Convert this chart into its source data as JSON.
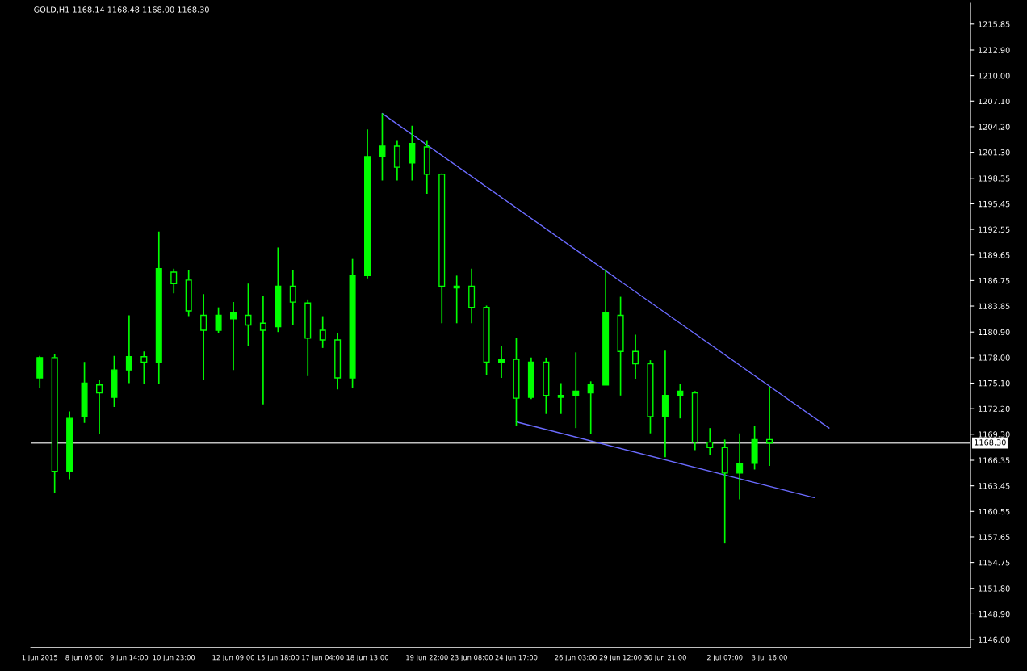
{
  "chart_data": {
    "type": "candlestick",
    "title": "GOLD,H1 1168.14 1168.48 1168.00 1168.30",
    "categories": [
      "1 Jun 2015",
      null,
      null,
      "8 Jun 05:00",
      null,
      null,
      "9 Jun 14:00",
      null,
      null,
      "10 Jun 23:00",
      null,
      null,
      null,
      "12 Jun 09:00",
      null,
      null,
      "15 Jun 18:00",
      null,
      null,
      "17 Jun 04:00",
      null,
      null,
      "18 Jun 13:00",
      null,
      null,
      null,
      "19 Jun 22:00",
      null,
      null,
      "23 Jun 08:00",
      null,
      null,
      "24 Jun 17:00",
      null,
      null,
      null,
      "26 Jun 03:00",
      null,
      null,
      "29 Jun 12:00",
      null,
      null,
      "30 Jun 21:00",
      null,
      null,
      null,
      "2 Jul 07:00",
      null,
      null,
      "3 Jul 16:00",
      null,
      null,
      null,
      null,
      null,
      null,
      null,
      null,
      null,
      null,
      null,
      null,
      null
    ],
    "series": [
      {
        "color": "#00ff00",
        "ohlc": [
          [
            1175.7,
            1178.2,
            1174.6,
            1178.0
          ],
          [
            1178.0,
            1178.4,
            1162.6,
            1165.1
          ],
          [
            1165.1,
            1171.9,
            1164.2,
            1171.1
          ],
          [
            1171.3,
            1177.5,
            1170.6,
            1175.1
          ],
          [
            1174.9,
            1175.5,
            1169.3,
            1174.0
          ],
          [
            1173.5,
            1178.2,
            1172.4,
            1176.6
          ],
          [
            1176.6,
            1182.8,
            1175.1,
            1178.1
          ],
          [
            1178.1,
            1178.7,
            1175.0,
            1177.5
          ],
          [
            1177.5,
            1192.3,
            1175.0,
            1188.1
          ],
          [
            1187.7,
            1188.1,
            1185.3,
            1186.4
          ],
          [
            1186.8,
            1187.9,
            1182.7,
            1183.3
          ],
          [
            1182.8,
            1185.2,
            1175.5,
            1181.1
          ],
          [
            1181.1,
            1183.7,
            1180.8,
            1182.8
          ],
          [
            1182.4,
            1184.3,
            1176.6,
            1183.1
          ],
          [
            1182.8,
            1186.4,
            1179.3,
            1181.7
          ],
          [
            1181.9,
            1185.0,
            1172.7,
            1181.1
          ],
          [
            1181.5,
            1190.5,
            1180.9,
            1186.1
          ],
          [
            1186.1,
            1187.9,
            1181.7,
            1184.3
          ],
          [
            1184.2,
            1184.6,
            1175.9,
            1180.2
          ],
          [
            1181.1,
            1182.7,
            1179.1,
            1180.0
          ],
          [
            1180.0,
            1180.8,
            1174.4,
            1175.7
          ],
          [
            1175.7,
            1189.2,
            1174.6,
            1187.3
          ],
          [
            1187.3,
            1203.9,
            1187.0,
            1200.8
          ],
          [
            1200.8,
            1205.7,
            1198.1,
            1202.0
          ],
          [
            1202.0,
            1202.6,
            1198.1,
            1199.6
          ],
          [
            1200.1,
            1204.3,
            1198.1,
            1202.3
          ],
          [
            1201.9,
            1202.6,
            1196.6,
            1198.8
          ],
          [
            1198.8,
            1198.9,
            1181.9,
            1186.1
          ],
          [
            1185.9,
            1187.3,
            1181.9,
            1186.1
          ],
          [
            1186.1,
            1188.1,
            1181.9,
            1183.7
          ],
          [
            1183.7,
            1183.9,
            1176.0,
            1177.5
          ],
          [
            1177.5,
            1179.3,
            1175.7,
            1177.8
          ],
          [
            1177.8,
            1180.2,
            1170.2,
            1173.4
          ],
          [
            1173.5,
            1178.0,
            1173.3,
            1177.5
          ],
          [
            1177.5,
            1178.0,
            1171.6,
            1173.7
          ],
          [
            1173.5,
            1175.1,
            1171.6,
            1173.7
          ],
          [
            1173.7,
            1178.6,
            1170.0,
            1174.2
          ],
          [
            1174.0,
            1175.3,
            1169.3,
            1174.9
          ],
          [
            1174.9,
            1188.0,
            1174.9,
            1183.1
          ],
          [
            1182.8,
            1184.9,
            1173.7,
            1178.7
          ],
          [
            1178.7,
            1180.6,
            1175.6,
            1177.3
          ],
          [
            1177.3,
            1177.7,
            1169.4,
            1171.3
          ],
          [
            1171.3,
            1178.8,
            1166.7,
            1173.7
          ],
          [
            1173.7,
            1175.0,
            1171.1,
            1174.2
          ],
          [
            1174.0,
            1174.2,
            1167.5,
            1168.4
          ],
          [
            1168.4,
            1170.0,
            1166.9,
            1167.8
          ],
          [
            1167.8,
            1168.7,
            1156.9,
            1164.9
          ],
          [
            1164.9,
            1169.4,
            1161.9,
            1166.0
          ],
          [
            1166.0,
            1170.2,
            1165.3,
            1168.7
          ],
          [
            1168.7,
            1174.7,
            1165.7,
            1168.3
          ],
          null,
          null,
          null,
          null,
          null,
          null,
          null,
          null,
          null,
          null,
          null,
          null,
          null
        ]
      },
      {
        "type": "line",
        "color": "#6b6bff",
        "values": [
          null,
          null,
          null,
          null,
          null,
          null,
          null,
          null,
          null,
          null,
          null,
          null,
          null,
          null,
          null,
          null,
          null,
          null,
          null,
          null,
          null,
          null,
          null,
          1205.7,
          null,
          null,
          null,
          null,
          null,
          null,
          null,
          null,
          null,
          null,
          null,
          null,
          null,
          null,
          null,
          null,
          null,
          null,
          null,
          null,
          null,
          null,
          null,
          null,
          null,
          null,
          null,
          null,
          null,
          1170.0,
          null,
          null,
          null,
          null,
          null,
          null,
          null,
          null,
          null
        ]
      },
      {
        "type": "line",
        "color": "#6b6bff",
        "values": [
          null,
          null,
          null,
          null,
          null,
          null,
          null,
          null,
          null,
          null,
          null,
          null,
          null,
          null,
          null,
          null,
          null,
          null,
          null,
          null,
          null,
          null,
          null,
          null,
          null,
          null,
          null,
          null,
          null,
          null,
          null,
          null,
          1170.7,
          null,
          null,
          null,
          null,
          null,
          null,
          null,
          null,
          null,
          null,
          null,
          null,
          null,
          null,
          null,
          null,
          null,
          null,
          null,
          1162.1,
          null,
          null,
          null,
          null,
          null,
          null,
          null,
          null,
          null,
          null
        ]
      }
    ],
    "ylim": [
      1145.1,
      1218.2
    ],
    "yticks": [
      {
        "value": 1146.0,
        "label": "1146.00"
      },
      {
        "value": 1148.9,
        "label": "1148.90"
      },
      {
        "value": 1151.8,
        "label": "1151.80"
      },
      {
        "value": 1154.75,
        "label": "1154.75"
      },
      {
        "value": 1157.65,
        "label": "1157.65"
      },
      {
        "value": 1160.55,
        "label": "1160.55"
      },
      {
        "value": 1163.45,
        "label": "1163.45"
      },
      {
        "value": 1166.35,
        "label": "1166.35"
      },
      {
        "value": 1169.3,
        "label": "1169.30"
      },
      {
        "value": 1172.2,
        "label": "1172.20"
      },
      {
        "value": 1175.1,
        "label": "1175.10"
      },
      {
        "value": 1178.0,
        "label": "1178.00"
      },
      {
        "value": 1180.9,
        "label": "1180.90"
      },
      {
        "value": 1183.85,
        "label": "1183.85"
      },
      {
        "value": 1186.75,
        "label": "1186.75"
      },
      {
        "value": 1189.65,
        "label": "1189.65"
      },
      {
        "value": 1192.55,
        "label": "1192.55"
      },
      {
        "value": 1195.45,
        "label": "1195.45"
      },
      {
        "value": 1198.35,
        "label": "1198.35"
      },
      {
        "value": 1201.3,
        "label": "1201.30"
      },
      {
        "value": 1204.2,
        "label": "1204.20"
      },
      {
        "value": 1207.1,
        "label": "1207.10"
      },
      {
        "value": 1210.0,
        "label": "1210.00"
      },
      {
        "value": 1212.9,
        "label": "1212.90"
      },
      {
        "value": 1215.85,
        "label": "1215.85"
      }
    ],
    "ref_lines": [
      {
        "axis": "y",
        "value": 1168.3,
        "label": "1168.30",
        "color": "#c0c0c0"
      }
    ]
  }
}
